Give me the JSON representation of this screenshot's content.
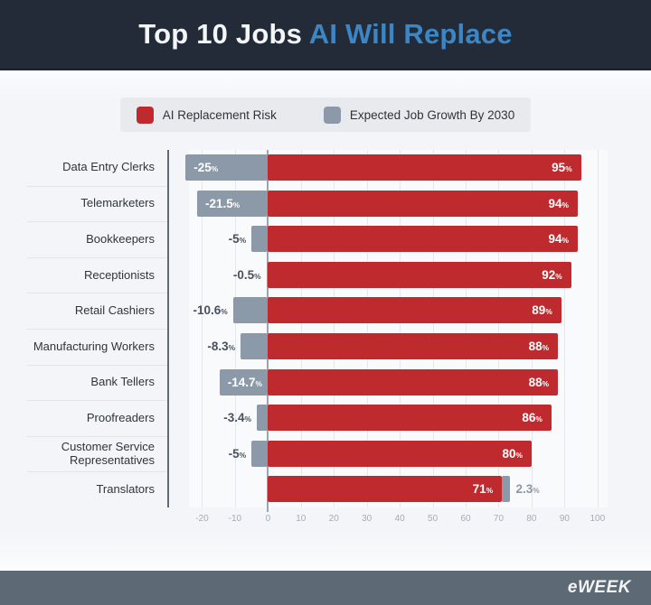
{
  "header": {
    "title_main": "Top 10 Jobs ",
    "title_accent": "AI Will Replace"
  },
  "legend": {
    "items": [
      {
        "label": "AI Replacement Risk",
        "color": "#bf2a2e"
      },
      {
        "label": "Expected Job Growth By 2030",
        "color": "#8b99a8"
      }
    ]
  },
  "chart_data": {
    "type": "bar",
    "orientation": "horizontal",
    "title": "Top 10 Jobs AI Will Replace",
    "categories": [
      "Data Entry Clerks",
      "Telemarketers",
      "Bookkeepers",
      "Receptionists",
      "Retail Cashiers",
      "Manufacturing Workers",
      "Bank Tellers",
      "Proofreaders",
      "Customer Service Representatives",
      "Translators"
    ],
    "series": [
      {
        "name": "AI Replacement Risk",
        "color": "#bf2a2e",
        "values": [
          95,
          94,
          94,
          92,
          89,
          88,
          88,
          86,
          80,
          71
        ],
        "labels": [
          "95%",
          "94%",
          "94%",
          "92%",
          "89%",
          "88%",
          "88%",
          "86%",
          "80%",
          "71%"
        ]
      },
      {
        "name": "Expected Job Growth By 2030",
        "color": "#8b99a8",
        "values": [
          -25,
          -21.5,
          -5,
          -0.5,
          -10.6,
          -8.3,
          -14.7,
          -3.4,
          -5,
          2.3
        ],
        "labels": [
          "-25%",
          "-21.5%",
          "-5%",
          "-0.5%",
          "-10.6%",
          "-8.3%",
          "-14.7%",
          "-3.4%",
          "-5%",
          "2.3%"
        ]
      }
    ],
    "xticks": [
      -20,
      -10,
      0,
      10,
      20,
      30,
      40,
      50,
      60,
      70,
      80,
      90,
      100
    ],
    "xlim": [
      -30,
      108
    ],
    "grid": true,
    "legend_position": "top"
  },
  "footer": {
    "brand": "eWEEK"
  }
}
